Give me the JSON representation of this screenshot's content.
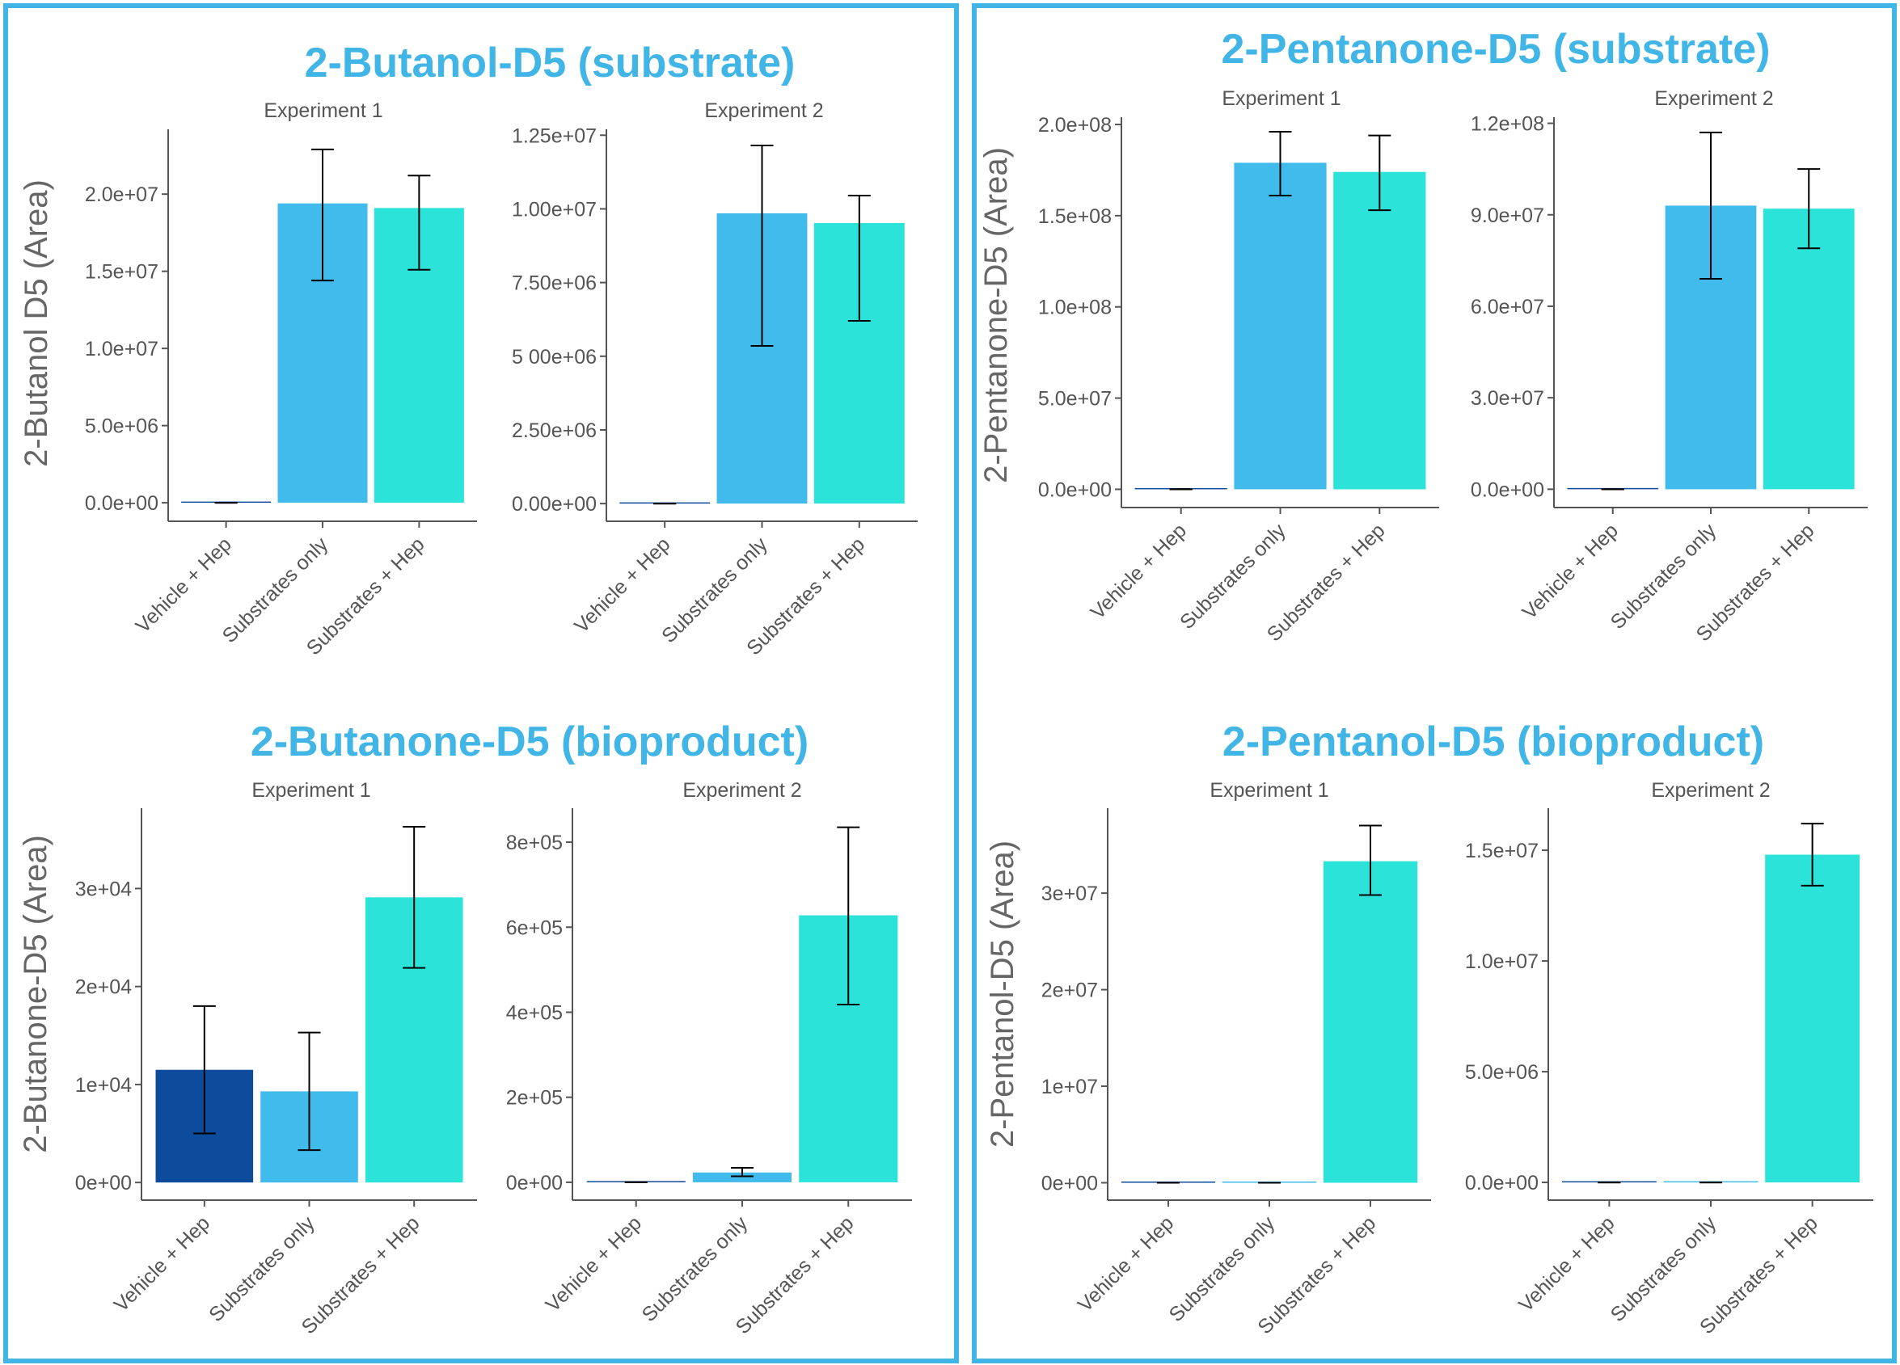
{
  "style": {
    "title_color": "#40b5e6",
    "frame_color": "#40b5e6",
    "axis_color": "#555555",
    "text_color": "#555555",
    "ylabel_color": "#666666",
    "errorbar_color": "#000000",
    "bar_colors": {
      "Vehicle + Hep": "#0d4c9c",
      "Substrates only": "#40bbeb",
      "Substrates + Hep": "#2be3d9"
    }
  },
  "chart_data": [
    {
      "type": "bar",
      "title": "2-Butanol-D5 (substrate)",
      "ylabel": "2-Butanol  D5 (Area)",
      "categories": [
        "Vehicle + Hep",
        "Substrates only",
        "Substrates + Hep"
      ],
      "facets": [
        {
          "label": "Experiment 1",
          "values": [
            0,
            19400000,
            19100000
          ],
          "err_low": [
            0,
            14400000,
            15100000
          ],
          "err_high": [
            0,
            22900000,
            21200000
          ],
          "ylim": [
            -1200000,
            24200000
          ],
          "ticks": [
            0,
            5000000,
            10000000,
            15000000,
            20000000
          ],
          "tick_labels": [
            "0.0e+00",
            "5.0e+06",
            "1.0e+07",
            "1.5e+07",
            "2.0e+07"
          ]
        },
        {
          "label": "Experiment 2",
          "values": [
            0,
            9850000,
            9520000
          ],
          "err_low": [
            0,
            5350000,
            6200000
          ],
          "err_high": [
            0,
            12150000,
            10450000
          ],
          "ylim": [
            -600000,
            12700000
          ],
          "ticks": [
            0,
            2500000,
            5000000,
            7500000,
            10000000,
            12500000
          ],
          "tick_labels": [
            "0.00e+00",
            "2.50e+06",
            "5 00e+06",
            "7.50e+06",
            "1.00e+07",
            "1.25e+07"
          ]
        }
      ]
    },
    {
      "type": "bar",
      "title": "2-Pentanone-D5 (substrate)",
      "ylabel": "2-Pentanone-D5 (Area)",
      "categories": [
        "Vehicle + Hep",
        "Substrates only",
        "Substrates + Hep"
      ],
      "facets": [
        {
          "label": "Experiment 1",
          "values": [
            0,
            179000000,
            174000000
          ],
          "err_low": [
            0,
            161000000,
            153000000
          ],
          "err_high": [
            0,
            196000000,
            194000000
          ],
          "ylim": [
            -10000000,
            204000000
          ],
          "ticks": [
            0,
            50000000,
            100000000,
            150000000,
            200000000
          ],
          "tick_labels": [
            "0.0e+00",
            "5.0e+07",
            "1.0e+08",
            "1.5e+08",
            "2.0e+08"
          ]
        },
        {
          "label": "Experiment 2",
          "values": [
            0,
            93000000,
            92000000
          ],
          "err_low": [
            0,
            69000000,
            79000000
          ],
          "err_high": [
            0,
            117000000,
            105000000
          ],
          "ylim": [
            -6000000,
            122000000
          ],
          "ticks": [
            0,
            30000000,
            60000000,
            90000000,
            120000000
          ],
          "tick_labels": [
            "0.0e+00",
            "3.0e+07",
            "6.0e+07",
            "9.0e+07",
            "1.2e+08"
          ]
        }
      ]
    },
    {
      "type": "bar",
      "title": "2-Butanone-D5 (bioproduct)",
      "ylabel": "2-Butanone-D5 (Area)",
      "categories": [
        "Vehicle + Hep",
        "Substrates only",
        "Substrates + Hep"
      ],
      "facets": [
        {
          "label": "Experiment 1",
          "values": [
            11500,
            9300,
            29100
          ],
          "err_low": [
            5000,
            3300,
            21900
          ],
          "err_high": [
            18000,
            15300,
            36300
          ],
          "ylim": [
            -1800,
            38200
          ],
          "ticks": [
            0,
            10000,
            20000,
            30000
          ],
          "tick_labels": [
            "0e+00",
            "1e+04",
            "2e+04",
            "3e+04"
          ]
        },
        {
          "label": "Experiment 2",
          "values": [
            0,
            23000,
            628000
          ],
          "err_low": [
            0,
            14000,
            418000
          ],
          "err_high": [
            0,
            34000,
            835000
          ],
          "ylim": [
            -42000,
            880000
          ],
          "ticks": [
            0,
            200000,
            400000,
            600000,
            800000
          ],
          "tick_labels": [
            "0e+00",
            "2e+05",
            "4e+05",
            "6e+05",
            "8e+05"
          ]
        }
      ]
    },
    {
      "type": "bar",
      "title": "2-Pentanol-D5 (bioproduct)",
      "ylabel": "2-Pentanol-D5 (Area)",
      "categories": [
        "Vehicle + Hep",
        "Substrates only",
        "Substrates + Hep"
      ],
      "facets": [
        {
          "label": "Experiment 1",
          "values": [
            0,
            0,
            33300000
          ],
          "err_low": [
            0,
            0,
            29800000
          ],
          "err_high": [
            0,
            0,
            37000000
          ],
          "ylim": [
            -1800000,
            38800000
          ],
          "ticks": [
            0,
            10000000,
            20000000,
            30000000
          ],
          "tick_labels": [
            "0e+00",
            "1e+07",
            "2e+07",
            "3e+07"
          ]
        },
        {
          "label": "Experiment 2",
          "values": [
            0,
            0,
            14800000
          ],
          "err_low": [
            0,
            0,
            13400000
          ],
          "err_high": [
            0,
            0,
            16200000
          ],
          "ylim": [
            -800000,
            16900000
          ],
          "ticks": [
            0,
            5000000,
            10000000,
            15000000
          ],
          "tick_labels": [
            "0.0e+00",
            "5.0e+06",
            "1.0e+07",
            "1.5e+07"
          ]
        }
      ]
    }
  ]
}
